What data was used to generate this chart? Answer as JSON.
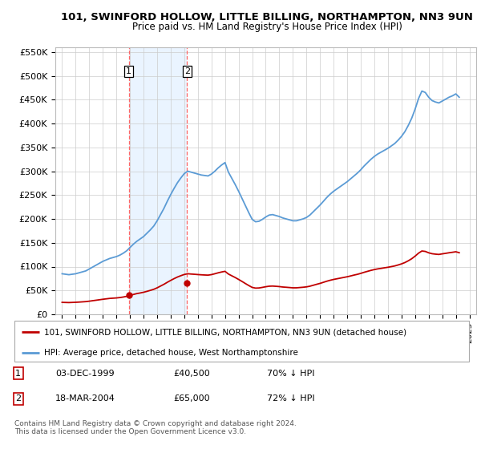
{
  "title": "101, SWINFORD HOLLOW, LITTLE BILLING, NORTHAMPTON, NN3 9UN",
  "subtitle": "Price paid vs. HM Land Registry's House Price Index (HPI)",
  "hpi_years": [
    1995,
    1995.25,
    1995.5,
    1995.75,
    1996,
    1996.25,
    1996.5,
    1996.75,
    1997,
    1997.25,
    1997.5,
    1997.75,
    1998,
    1998.25,
    1998.5,
    1998.75,
    1999,
    1999.25,
    1999.5,
    1999.75,
    2000,
    2000.25,
    2000.5,
    2000.75,
    2001,
    2001.25,
    2001.5,
    2001.75,
    2002,
    2002.25,
    2002.5,
    2002.75,
    2003,
    2003.25,
    2003.5,
    2003.75,
    2004,
    2004.25,
    2004.5,
    2004.75,
    2005,
    2005.25,
    2005.5,
    2005.75,
    2006,
    2006.25,
    2006.5,
    2006.75,
    2007,
    2007.25,
    2007.5,
    2007.75,
    2008,
    2008.25,
    2008.5,
    2008.75,
    2009,
    2009.25,
    2009.5,
    2009.75,
    2010,
    2010.25,
    2010.5,
    2010.75,
    2011,
    2011.25,
    2011.5,
    2011.75,
    2012,
    2012.25,
    2012.5,
    2012.75,
    2013,
    2013.25,
    2013.5,
    2013.75,
    2014,
    2014.25,
    2014.5,
    2014.75,
    2015,
    2015.25,
    2015.5,
    2015.75,
    2016,
    2016.25,
    2016.5,
    2016.75,
    2017,
    2017.25,
    2017.5,
    2017.75,
    2018,
    2018.25,
    2018.5,
    2018.75,
    2019,
    2019.25,
    2019.5,
    2019.75,
    2020,
    2020.25,
    2020.5,
    2020.75,
    2021,
    2021.25,
    2021.5,
    2021.75,
    2022,
    2022.25,
    2022.5,
    2022.75,
    2023,
    2023.25,
    2023.5,
    2023.75,
    2024,
    2024.25
  ],
  "hpi_values": [
    85000,
    84000,
    83000,
    84000,
    85000,
    87000,
    89000,
    91000,
    95000,
    99000,
    103000,
    107000,
    111000,
    114000,
    117000,
    119000,
    121000,
    124000,
    128000,
    133000,
    140000,
    147000,
    153000,
    158000,
    163000,
    170000,
    177000,
    185000,
    196000,
    209000,
    222000,
    237000,
    251000,
    264000,
    276000,
    286000,
    295000,
    300000,
    298000,
    296000,
    294000,
    292000,
    291000,
    290000,
    294000,
    300000,
    307000,
    313000,
    318000,
    298000,
    285000,
    272000,
    258000,
    243000,
    228000,
    213000,
    199000,
    194000,
    195000,
    199000,
    204000,
    208000,
    209000,
    207000,
    205000,
    202000,
    200000,
    198000,
    196000,
    196000,
    198000,
    200000,
    203000,
    208000,
    215000,
    222000,
    229000,
    237000,
    245000,
    252000,
    258000,
    263000,
    268000,
    273000,
    278000,
    284000,
    290000,
    296000,
    303000,
    311000,
    318000,
    325000,
    331000,
    336000,
    340000,
    344000,
    348000,
    353000,
    358000,
    365000,
    373000,
    383000,
    396000,
    411000,
    430000,
    452000,
    468000,
    465000,
    455000,
    448000,
    445000,
    443000,
    447000,
    451000,
    455000,
    458000,
    462000,
    455000
  ],
  "red_line_years": [
    1995,
    1995.25,
    1995.5,
    1995.75,
    1996,
    1996.25,
    1996.5,
    1996.75,
    1997,
    1997.25,
    1997.5,
    1997.75,
    1998,
    1998.25,
    1998.5,
    1998.75,
    1999,
    1999.25,
    1999.5,
    1999.75,
    2000,
    2000.25,
    2000.5,
    2000.75,
    2001,
    2001.25,
    2001.5,
    2001.75,
    2002,
    2002.25,
    2002.5,
    2002.75,
    2003,
    2003.25,
    2003.5,
    2003.75,
    2004,
    2004.25,
    2004.5,
    2004.75,
    2005,
    2005.25,
    2005.5,
    2005.75,
    2006,
    2006.25,
    2006.5,
    2006.75,
    2007,
    2007.25,
    2007.5,
    2007.75,
    2008,
    2008.25,
    2008.5,
    2008.75,
    2009,
    2009.25,
    2009.5,
    2009.75,
    2010,
    2010.25,
    2010.5,
    2010.75,
    2011,
    2011.25,
    2011.5,
    2011.75,
    2012,
    2012.25,
    2012.5,
    2012.75,
    2013,
    2013.25,
    2013.5,
    2013.75,
    2014,
    2014.25,
    2014.5,
    2014.75,
    2015,
    2015.25,
    2015.5,
    2015.75,
    2016,
    2016.25,
    2016.5,
    2016.75,
    2017,
    2017.25,
    2017.5,
    2017.75,
    2018,
    2018.25,
    2018.5,
    2018.75,
    2019,
    2019.25,
    2019.5,
    2019.75,
    2020,
    2020.25,
    2020.5,
    2020.75,
    2021,
    2021.25,
    2021.5,
    2021.75,
    2022,
    2022.25,
    2022.5,
    2022.75,
    2023,
    2023.25,
    2023.5,
    2023.75,
    2024,
    2024.25
  ],
  "red_line_values": [
    25000,
    24800,
    24600,
    24900,
    25200,
    25600,
    26100,
    26600,
    27500,
    28500,
    29500,
    30500,
    31500,
    32400,
    33300,
    33800,
    34300,
    35100,
    36200,
    37600,
    39600,
    41600,
    43400,
    44700,
    46200,
    48100,
    50200,
    52400,
    55500,
    59200,
    62900,
    67100,
    71100,
    74800,
    78200,
    81000,
    83500,
    85000,
    84400,
    83900,
    83300,
    82800,
    82400,
    82100,
    83200,
    85000,
    87000,
    88700,
    90100,
    84400,
    80700,
    77100,
    73100,
    68900,
    64500,
    60300,
    56400,
    54900,
    55200,
    56400,
    57800,
    58900,
    59200,
    58700,
    58100,
    57200,
    56700,
    56100,
    55500,
    55500,
    56100,
    56700,
    57500,
    58900,
    60900,
    62900,
    64800,
    67100,
    69400,
    71400,
    73100,
    74500,
    75900,
    77300,
    78700,
    80400,
    82200,
    83800,
    85800,
    88100,
    90100,
    92100,
    93800,
    95200,
    96300,
    97500,
    98600,
    100000,
    101400,
    103400,
    105700,
    108500,
    112200,
    116500,
    121900,
    128100,
    132700,
    131800,
    128900,
    127000,
    126100,
    125500,
    126700,
    127800,
    129000,
    130000,
    131100,
    129100
  ],
  "sale_years": [
    1999.92,
    2004.21
  ],
  "sale_prices": [
    40500,
    65000
  ],
  "sale_labels": [
    "1",
    "2"
  ],
  "fill_between_x1": 1999.92,
  "fill_between_x2": 2004.21,
  "hpi_color": "#5B9BD5",
  "sale_color": "#C00000",
  "ylim": [
    0,
    560000
  ],
  "yticks": [
    0,
    50000,
    100000,
    150000,
    200000,
    250000,
    300000,
    350000,
    400000,
    450000,
    500000,
    550000
  ],
  "ytick_labels": [
    "£0",
    "£50K",
    "£100K",
    "£150K",
    "£200K",
    "£250K",
    "£300K",
    "£350K",
    "£400K",
    "£450K",
    "£500K",
    "£550K"
  ],
  "xlim": [
    1994.5,
    2025.5
  ],
  "xtick_years": [
    1995,
    1996,
    1997,
    1998,
    1999,
    2000,
    2001,
    2002,
    2003,
    2004,
    2005,
    2006,
    2007,
    2008,
    2009,
    2010,
    2011,
    2012,
    2013,
    2014,
    2015,
    2016,
    2017,
    2018,
    2019,
    2020,
    2021,
    2022,
    2023,
    2024,
    2025
  ],
  "legend_line1": "101, SWINFORD HOLLOW, LITTLE BILLING, NORTHAMPTON, NN3 9UN (detached house)",
  "legend_line2": "HPI: Average price, detached house, West Northamptonshire",
  "table_rows": [
    {
      "num": "1",
      "date": "03-DEC-1999",
      "price": "£40,500",
      "hpi": "70% ↓ HPI"
    },
    {
      "num": "2",
      "date": "18-MAR-2004",
      "price": "£65,000",
      "hpi": "72% ↓ HPI"
    }
  ],
  "footnote": "Contains HM Land Registry data © Crown copyright and database right 2024.\nThis data is licensed under the Open Government Licence v3.0.",
  "bg_color": "#FFFFFF",
  "grid_color": "#CCCCCC",
  "vline_color": "#FF6666",
  "fill_color": "#DDEEFF",
  "fill_alpha": 0.6
}
